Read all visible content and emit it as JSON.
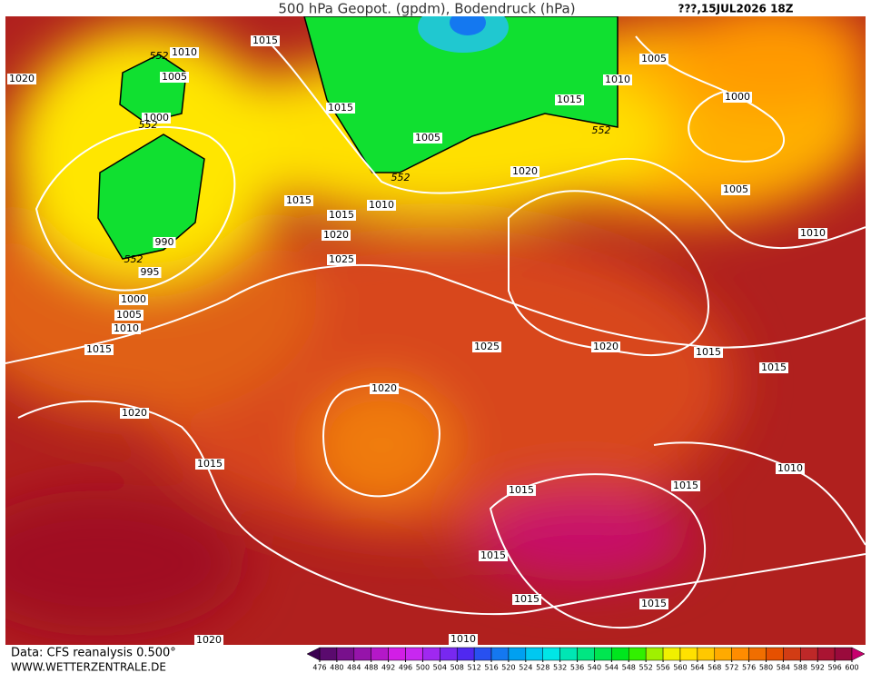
{
  "header": {
    "title": "500 hPa Geopot. (gpdm), Bodendruck (hPa)",
    "date": "???,15JUL2026 18Z"
  },
  "map": {
    "isobar_labels": [
      "1015",
      "1010",
      "1005",
      "1000",
      "1020",
      "1015",
      "1005",
      "1010",
      "1005",
      "1015",
      "1000",
      "1005",
      "1010",
      "1020",
      "1015",
      "1010",
      "1015",
      "1020",
      "1025",
      "990",
      "995",
      "1000",
      "1005",
      "1010",
      "1015",
      "1025",
      "1020",
      "1015",
      "1015",
      "1020",
      "1020",
      "1015",
      "1010",
      "1015",
      "1015",
      "1015",
      "1015",
      "1015",
      "1020",
      "1010"
    ],
    "contour_labels": [
      "552",
      "552",
      "552",
      "552",
      "552"
    ]
  },
  "footer": {
    "source": "Data: CFS reanalysis 0.500°",
    "site": "WWW.WETTERZENTRALE.DE"
  },
  "colorbar": {
    "ticks": [
      476,
      480,
      484,
      488,
      492,
      496,
      500,
      504,
      508,
      512,
      516,
      520,
      524,
      528,
      532,
      536,
      540,
      544,
      548,
      552,
      556,
      560,
      564,
      568,
      572,
      576,
      580,
      584,
      588,
      592,
      596,
      600
    ],
    "colors": [
      "#5a0a6e",
      "#78108c",
      "#9614aa",
      "#b418c8",
      "#d21ee6",
      "#c828f0",
      "#a028f0",
      "#7828f0",
      "#5028f0",
      "#2850f0",
      "#1478f0",
      "#00a0f0",
      "#00c8f0",
      "#00e6e6",
      "#00e6b4",
      "#00e682",
      "#00e650",
      "#00e61e",
      "#32f000",
      "#a0f000",
      "#f0f000",
      "#ffe100",
      "#ffc800",
      "#ffaa00",
      "#ff8c00",
      "#f06e00",
      "#e65000",
      "#d23c14",
      "#be2828",
      "#aa1432",
      "#9a0a3c"
    ]
  }
}
